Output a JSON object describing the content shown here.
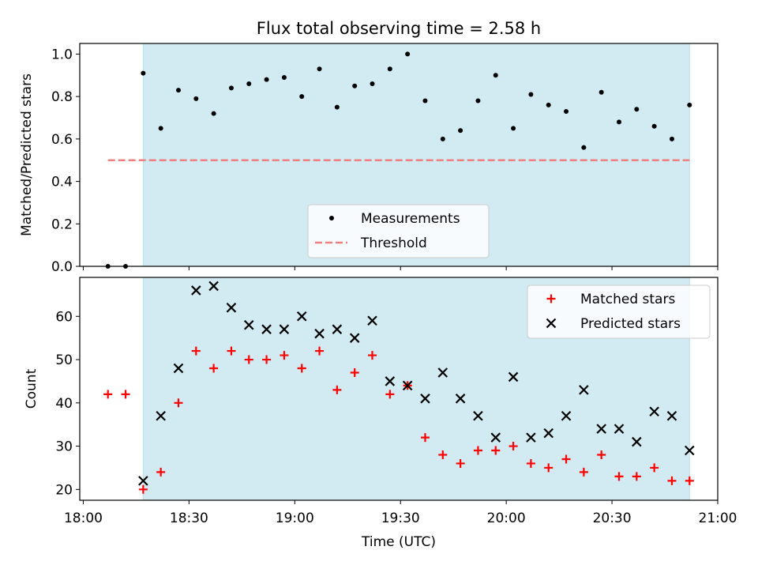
{
  "chart_data": [
    {
      "type": "scatter",
      "title": "Flux total observing time = 2.58 h",
      "ylabel": "Matched/Predicted stars",
      "xlabel": "",
      "xlim": [
        "17:59",
        "21:00"
      ],
      "ylim": [
        0,
        1.05
      ],
      "yticks": [
        "0.0",
        "0.2",
        "0.4",
        "0.6",
        "0.8",
        "1.0"
      ],
      "shaded_span": [
        "18:17",
        "20:52"
      ],
      "shade_color": "#add8e6",
      "legend": {
        "placement": "lower-center"
      },
      "series": [
        {
          "name": "Measurements",
          "marker": "dot",
          "color": "#000000",
          "points": [
            [
              "18:07",
              0.0
            ],
            [
              "18:12",
              0.0
            ],
            [
              "18:17",
              0.91
            ],
            [
              "18:22",
              0.65
            ],
            [
              "18:27",
              0.83
            ],
            [
              "18:32",
              0.79
            ],
            [
              "18:37",
              0.72
            ],
            [
              "18:42",
              0.84
            ],
            [
              "18:47",
              0.86
            ],
            [
              "18:52",
              0.88
            ],
            [
              "18:57",
              0.89
            ],
            [
              "19:02",
              0.8
            ],
            [
              "19:07",
              0.93
            ],
            [
              "19:12",
              0.75
            ],
            [
              "19:17",
              0.85
            ],
            [
              "19:22",
              0.86
            ],
            [
              "19:27",
              0.93
            ],
            [
              "19:32",
              1.0
            ],
            [
              "19:37",
              0.78
            ],
            [
              "19:42",
              0.6
            ],
            [
              "19:47",
              0.64
            ],
            [
              "19:52",
              0.78
            ],
            [
              "19:57",
              0.9
            ],
            [
              "20:02",
              0.65
            ],
            [
              "20:07",
              0.81
            ],
            [
              "20:12",
              0.76
            ],
            [
              "20:17",
              0.73
            ],
            [
              "20:22",
              0.56
            ],
            [
              "20:27",
              0.82
            ],
            [
              "20:32",
              0.68
            ],
            [
              "20:37",
              0.74
            ],
            [
              "20:42",
              0.66
            ],
            [
              "20:47",
              0.6
            ],
            [
              "20:52",
              0.76
            ]
          ]
        },
        {
          "name": "Threshold",
          "marker": "dashed-line",
          "color": "#f08080",
          "points": [
            [
              "18:07",
              0.5
            ],
            [
              "20:52",
              0.5
            ]
          ]
        }
      ]
    },
    {
      "type": "scatter",
      "title": "",
      "ylabel": "Count",
      "xlabel": "Time (UTC)",
      "xlim": [
        "17:59",
        "21:00"
      ],
      "ylim": [
        17.5,
        69.0
      ],
      "xticks": [
        "18:00",
        "18:30",
        "19:00",
        "19:30",
        "20:00",
        "20:30",
        "21:00"
      ],
      "yticks": [
        "20",
        "30",
        "40",
        "50",
        "60"
      ],
      "shaded_span": [
        "18:17",
        "20:52"
      ],
      "shade_color": "#add8e6",
      "legend": {
        "placement": "top-right"
      },
      "series": [
        {
          "name": "Matched stars",
          "marker": "plus",
          "color": "#ff0000",
          "points": [
            [
              "18:07",
              42
            ],
            [
              "18:12",
              42
            ],
            [
              "18:17",
              20
            ],
            [
              "18:22",
              24
            ],
            [
              "18:27",
              40
            ],
            [
              "18:32",
              52
            ],
            [
              "18:37",
              48
            ],
            [
              "18:42",
              52
            ],
            [
              "18:47",
              50
            ],
            [
              "18:52",
              50
            ],
            [
              "18:57",
              51
            ],
            [
              "19:02",
              48
            ],
            [
              "19:07",
              52
            ],
            [
              "19:12",
              43
            ],
            [
              "19:17",
              47
            ],
            [
              "19:22",
              51
            ],
            [
              "19:27",
              42
            ],
            [
              "19:32",
              44
            ],
            [
              "19:37",
              32
            ],
            [
              "19:42",
              28
            ],
            [
              "19:47",
              26
            ],
            [
              "19:52",
              29
            ],
            [
              "19:57",
              29
            ],
            [
              "20:02",
              30
            ],
            [
              "20:07",
              26
            ],
            [
              "20:12",
              25
            ],
            [
              "20:17",
              27
            ],
            [
              "20:22",
              24
            ],
            [
              "20:27",
              28
            ],
            [
              "20:32",
              23
            ],
            [
              "20:37",
              23
            ],
            [
              "20:42",
              25
            ],
            [
              "20:47",
              22
            ],
            [
              "20:52",
              22
            ]
          ]
        },
        {
          "name": "Predicted stars",
          "marker": "x",
          "color": "#000000",
          "points": [
            [
              "18:17",
              22
            ],
            [
              "18:22",
              37
            ],
            [
              "18:27",
              48
            ],
            [
              "18:32",
              66
            ],
            [
              "18:37",
              67
            ],
            [
              "18:42",
              62
            ],
            [
              "18:47",
              58
            ],
            [
              "18:52",
              57
            ],
            [
              "18:57",
              57
            ],
            [
              "19:02",
              60
            ],
            [
              "19:07",
              56
            ],
            [
              "19:12",
              57
            ],
            [
              "19:17",
              55
            ],
            [
              "19:22",
              59
            ],
            [
              "19:27",
              45
            ],
            [
              "19:32",
              44
            ],
            [
              "19:37",
              41
            ],
            [
              "19:42",
              47
            ],
            [
              "19:47",
              41
            ],
            [
              "19:52",
              37
            ],
            [
              "19:57",
              32
            ],
            [
              "20:02",
              46
            ],
            [
              "20:07",
              32
            ],
            [
              "20:12",
              33
            ],
            [
              "20:17",
              37
            ],
            [
              "20:22",
              43
            ],
            [
              "20:27",
              34
            ],
            [
              "20:32",
              34
            ],
            [
              "20:37",
              31
            ],
            [
              "20:42",
              38
            ],
            [
              "20:47",
              37
            ],
            [
              "20:52",
              29
            ]
          ]
        }
      ]
    }
  ]
}
